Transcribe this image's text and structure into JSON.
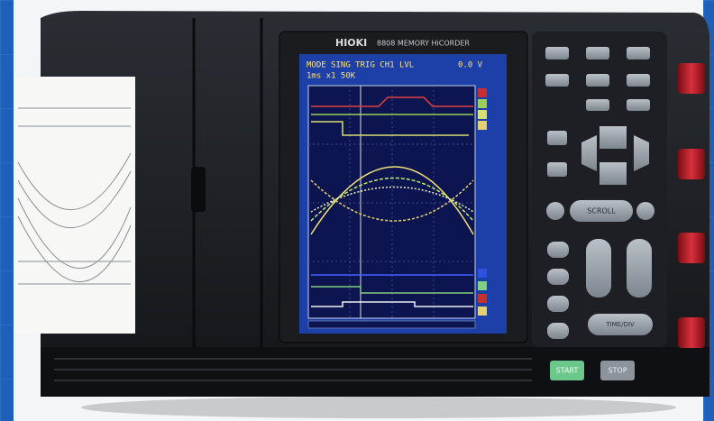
{
  "device": {
    "brand": "HIOKI",
    "model": "8808 MEMORY HiCORDER"
  },
  "screen": {
    "status_top": "MODE SING TRIG CH1 LVL",
    "level": "0.0 V",
    "status_bottom": "1ms x1 50K"
  },
  "buttons": {
    "scroll": "SCROLL",
    "start": "START",
    "stop": "STOP",
    "time_div": "TIME/DIV"
  }
}
